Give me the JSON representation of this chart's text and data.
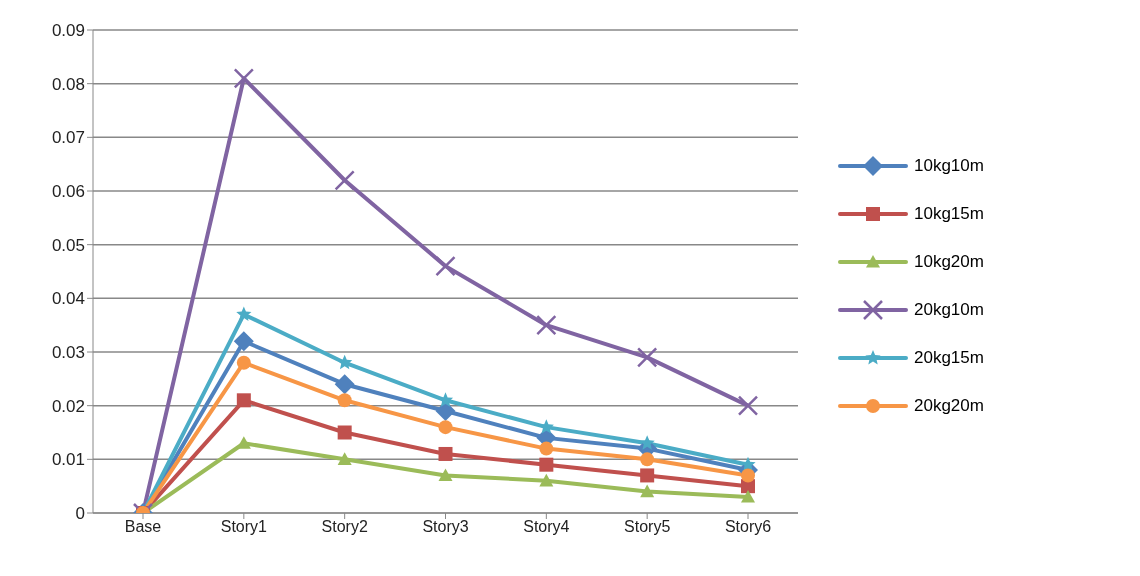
{
  "chart_data": {
    "type": "line",
    "categories": [
      "Base",
      "Story1",
      "Story2",
      "Story3",
      "Story4",
      "Story5",
      "Story6"
    ],
    "series": [
      {
        "name": "10kg10m",
        "color": "#4f81bd",
        "marker": "diamond",
        "values": [
          0,
          0.032,
          0.024,
          0.019,
          0.014,
          0.012,
          0.008
        ]
      },
      {
        "name": "10kg15m",
        "color": "#c0504d",
        "marker": "square",
        "values": [
          0,
          0.021,
          0.015,
          0.011,
          0.009,
          0.007,
          0.005
        ]
      },
      {
        "name": "10kg20m",
        "color": "#9bbb59",
        "marker": "triangle",
        "values": [
          0,
          0.013,
          0.01,
          0.007,
          0.006,
          0.004,
          0.003
        ]
      },
      {
        "name": "20kg10m",
        "color": "#8064a2",
        "marker": "cross",
        "values": [
          0,
          0.081,
          0.062,
          0.046,
          0.035,
          0.029,
          0.02
        ]
      },
      {
        "name": "20kg15m",
        "color": "#4bacc6",
        "marker": "star",
        "values": [
          0,
          0.037,
          0.028,
          0.021,
          0.016,
          0.013,
          0.009
        ]
      },
      {
        "name": "20kg20m",
        "color": "#f79646",
        "marker": "circle",
        "values": [
          0,
          0.028,
          0.021,
          0.016,
          0.012,
          0.01,
          0.007
        ]
      }
    ],
    "ylim": [
      0,
      0.09
    ],
    "yticks": [
      0,
      0.01,
      0.02,
      0.03,
      0.04,
      0.05,
      0.06,
      0.07,
      0.08,
      0.09
    ],
    "grid": "y",
    "legend": "right",
    "line_style": "solid"
  }
}
